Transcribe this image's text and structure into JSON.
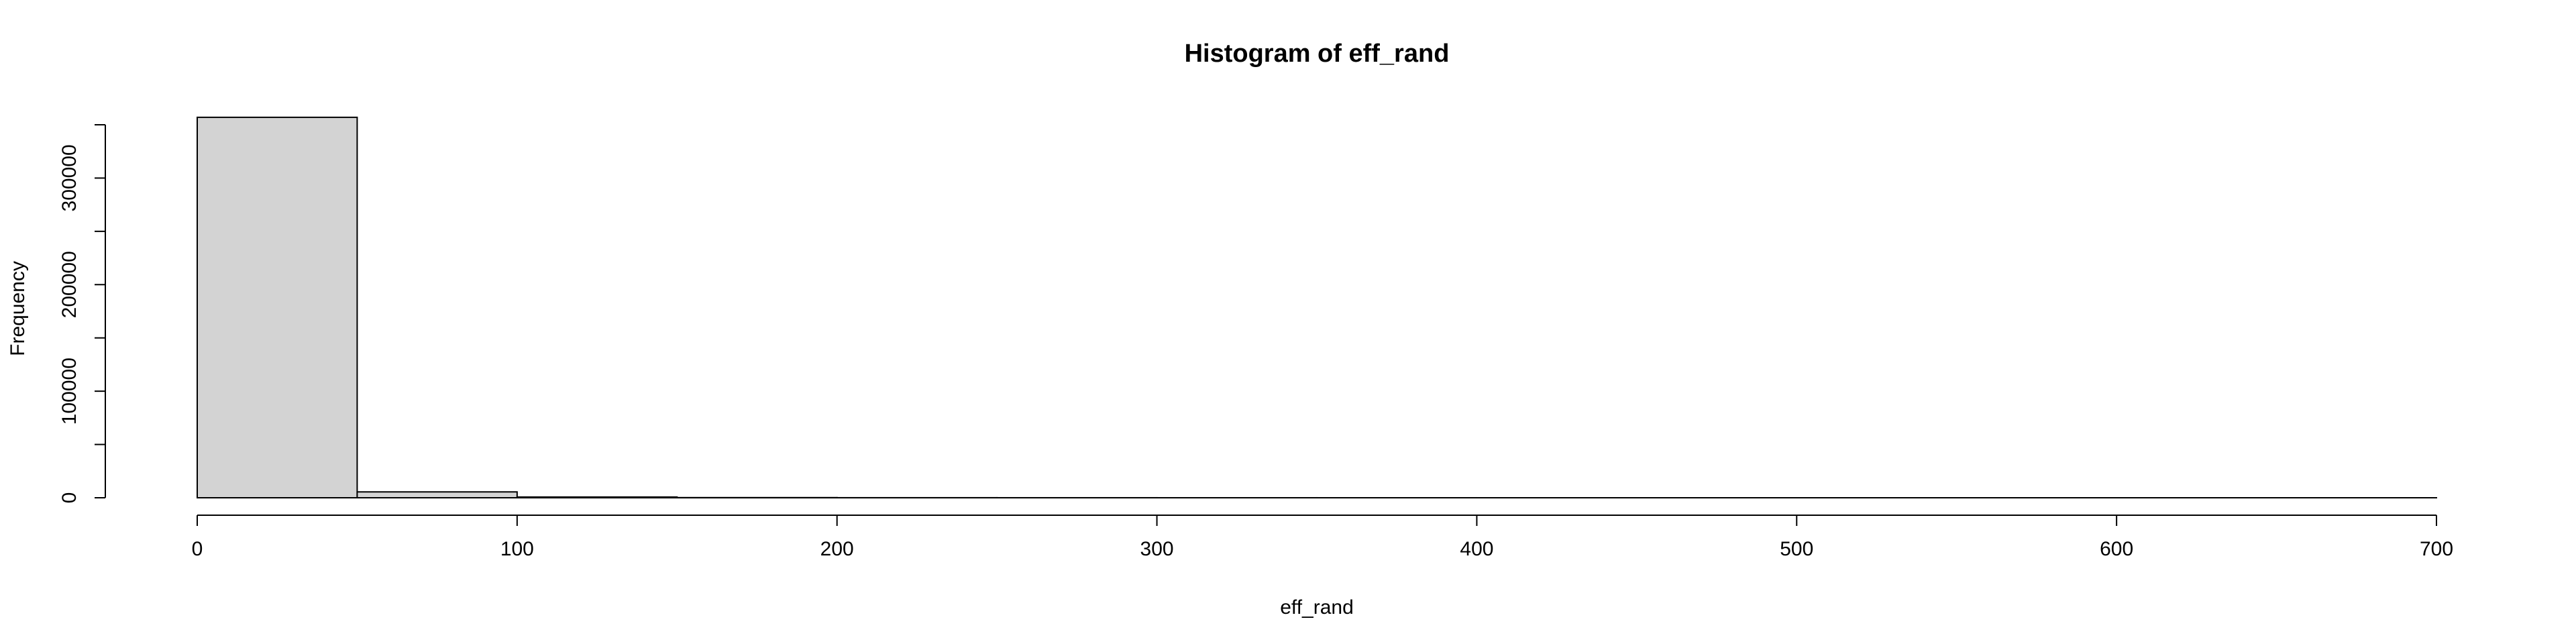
{
  "chart_data": {
    "type": "bar",
    "title": "Histogram of eff_rand",
    "xlabel": "eff_rand",
    "ylabel": "Frequency",
    "xlim": [
      0,
      700
    ],
    "ylim": [
      0,
      350000
    ],
    "x_ticks": [
      0,
      100,
      200,
      300,
      400,
      500,
      600,
      700
    ],
    "y_ticks": [
      0,
      100000,
      200000,
      300000
    ],
    "y_minor_ticks": [
      50000,
      150000,
      250000,
      350000
    ],
    "bin_edges": [
      0,
      50,
      100,
      150,
      200,
      250,
      300,
      350,
      400,
      450,
      500,
      550,
      600,
      650,
      700
    ],
    "counts": [
      357000,
      5500,
      700,
      150,
      60,
      30,
      15,
      10,
      5,
      3,
      2,
      1,
      1,
      1
    ],
    "bar_fill": "#d3d3d3",
    "grid": false,
    "legend": "none"
  }
}
